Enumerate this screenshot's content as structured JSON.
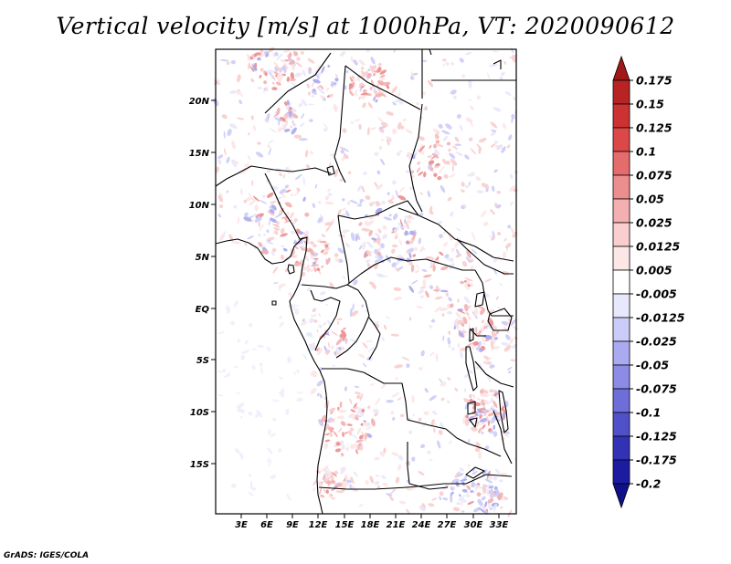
{
  "title": "Vertical velocity [m/s] at 1000hPa, VT: 2020090612",
  "credit": "GrADS: IGES/COLA",
  "map": {
    "lat_ticks": [
      "20N",
      "15N",
      "10N",
      "5N",
      "EQ",
      "5S",
      "10S",
      "15S"
    ],
    "lon_ticks": [
      "3E",
      "6E",
      "9E",
      "12E",
      "15E",
      "18E",
      "21E",
      "24E",
      "27E",
      "30E",
      "33E"
    ],
    "lat_range": [
      -20,
      25
    ],
    "lon_range": [
      0.5,
      35.5
    ]
  },
  "colorbar": {
    "levels": [
      "0.175",
      "0.15",
      "0.125",
      "0.1",
      "0.075",
      "0.05",
      "0.025",
      "0.0125",
      "0.005",
      "-0.005",
      "-0.0125",
      "-0.025",
      "-0.05",
      "-0.075",
      "-0.1",
      "-0.125",
      "-0.175",
      "-0.2"
    ],
    "colors": [
      "#a01818",
      "#b82424",
      "#cc3232",
      "#dc4848",
      "#e46c6c",
      "#ec8e8e",
      "#f4b0b0",
      "#f8cece",
      "#fce6e6",
      "#ffffff",
      "#e8e8fc",
      "#ccccf8",
      "#aaaaf0",
      "#8c8ce6",
      "#6e6ed8",
      "#5050c8",
      "#3232b4",
      "#1c1ca0",
      "#10108a"
    ]
  }
}
